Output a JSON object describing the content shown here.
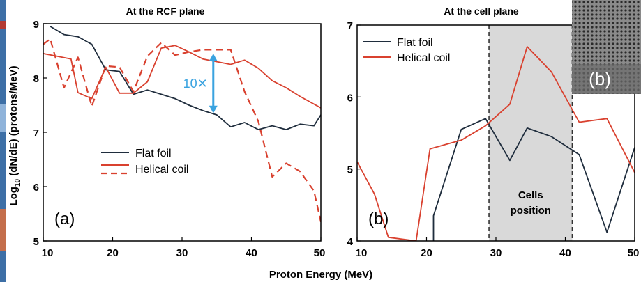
{
  "figure": {
    "xlabel": "Proton Energy (MeV)",
    "ylabel_main": "Log",
    "ylabel_sub": "10",
    "ylabel_rest": " (dN/dE) (protons/MeV)",
    "inset_label": "(b)"
  },
  "chart_data": [
    {
      "type": "line",
      "title": "At the RCF plane",
      "panel_label": "(a)",
      "xlim": [
        10,
        50
      ],
      "ylim": [
        5,
        9
      ],
      "x_ticks": [
        "10",
        "20",
        "30",
        "40",
        "50"
      ],
      "y_ticks": [
        "5",
        "6",
        "7",
        "8",
        "9"
      ],
      "grid": false,
      "legend_position": "lower-left",
      "annotation": {
        "text": "10✕",
        "x": 34.5,
        "y_from": 7.35,
        "y_to": 8.45
      },
      "series": [
        {
          "name": "Flat foil",
          "color": "#1f2d3d",
          "style": "solid",
          "points": [
            [
              11,
              8.95
            ],
            [
              13,
              8.8
            ],
            [
              15,
              8.76
            ],
            [
              17,
              8.62
            ],
            [
              19,
              8.15
            ],
            [
              21,
              8.12
            ],
            [
              23,
              7.7
            ],
            [
              25,
              7.78
            ],
            [
              27,
              7.7
            ],
            [
              29,
              7.62
            ],
            [
              31,
              7.5
            ],
            [
              33,
              7.4
            ],
            [
              35,
              7.32
            ],
            [
              37,
              7.1
            ],
            [
              39,
              7.18
            ],
            [
              41,
              7.05
            ],
            [
              43,
              7.12
            ],
            [
              45,
              7.05
            ],
            [
              47,
              7.15
            ],
            [
              49,
              7.12
            ],
            [
              50,
              7.32
            ]
          ]
        },
        {
          "name": "Helical coil",
          "color": "#d9412f",
          "style": "solid",
          "points": [
            [
              10,
              8.45
            ],
            [
              12,
              8.4
            ],
            [
              14,
              8.35
            ],
            [
              15,
              7.73
            ],
            [
              17,
              7.62
            ],
            [
              19,
              8.2
            ],
            [
              21,
              7.72
            ],
            [
              23,
              7.72
            ],
            [
              25,
              7.93
            ],
            [
              27,
              8.55
            ],
            [
              29,
              8.6
            ],
            [
              31,
              8.48
            ],
            [
              33,
              8.35
            ],
            [
              35,
              8.3
            ],
            [
              37,
              8.25
            ],
            [
              39,
              8.33
            ],
            [
              41,
              8.18
            ],
            [
              43,
              7.95
            ],
            [
              45,
              7.82
            ],
            [
              47,
              7.66
            ],
            [
              50,
              7.45
            ]
          ]
        },
        {
          "name": "Helical coil",
          "color": "#d9412f",
          "style": "dashed",
          "points": [
            [
              10,
              8.62
            ],
            [
              11,
              8.72
            ],
            [
              13,
              7.82
            ],
            [
              15,
              8.38
            ],
            [
              17,
              7.48
            ],
            [
              19,
              8.22
            ],
            [
              21,
              8.2
            ],
            [
              23,
              7.75
            ],
            [
              25,
              8.4
            ],
            [
              27,
              8.65
            ],
            [
              29,
              8.42
            ],
            [
              31,
              8.48
            ],
            [
              33,
              8.52
            ],
            [
              35,
              8.52
            ],
            [
              37,
              8.52
            ],
            [
              39,
              7.75
            ],
            [
              41,
              7.2
            ],
            [
              43,
              6.18
            ],
            [
              45,
              6.43
            ],
            [
              47,
              6.28
            ],
            [
              49,
              5.92
            ],
            [
              50,
              5.35
            ]
          ]
        }
      ]
    },
    {
      "type": "line",
      "title": "At the cell plane",
      "panel_label": "(b)",
      "xlim": [
        10,
        50
      ],
      "ylim": [
        4,
        7
      ],
      "x_ticks": [
        "10",
        "20",
        "30",
        "40",
        "50"
      ],
      "y_ticks": [
        "4",
        "5",
        "6",
        "7"
      ],
      "grid": false,
      "legend_position": "top-left",
      "shaded_region": {
        "x": [
          29,
          41
        ],
        "label": [
          "Cells",
          "position"
        ]
      },
      "series": [
        {
          "name": "Flat foil",
          "color": "#1f2d3d",
          "style": "solid",
          "points": [
            [
              21,
              4
            ],
            [
              21,
              4.35
            ],
            [
              25,
              5.55
            ],
            [
              28.5,
              5.7
            ],
            [
              32,
              5.12
            ],
            [
              34.5,
              5.57
            ],
            [
              38,
              5.45
            ],
            [
              42,
              5.2
            ],
            [
              46,
              4.12
            ],
            [
              50,
              5.3
            ]
          ]
        },
        {
          "name": "Helical coil",
          "color": "#d9412f",
          "style": "solid",
          "points": [
            [
              10,
              5.1
            ],
            [
              12.5,
              4.65
            ],
            [
              14.5,
              4.05
            ],
            [
              18.5,
              4
            ],
            [
              20.5,
              5.28
            ],
            [
              25,
              5.4
            ],
            [
              28.5,
              5.6
            ],
            [
              32,
              5.9
            ],
            [
              34.5,
              6.7
            ],
            [
              38,
              6.35
            ],
            [
              42,
              5.65
            ],
            [
              46,
              5.7
            ],
            [
              50,
              4.95
            ]
          ]
        }
      ]
    }
  ]
}
